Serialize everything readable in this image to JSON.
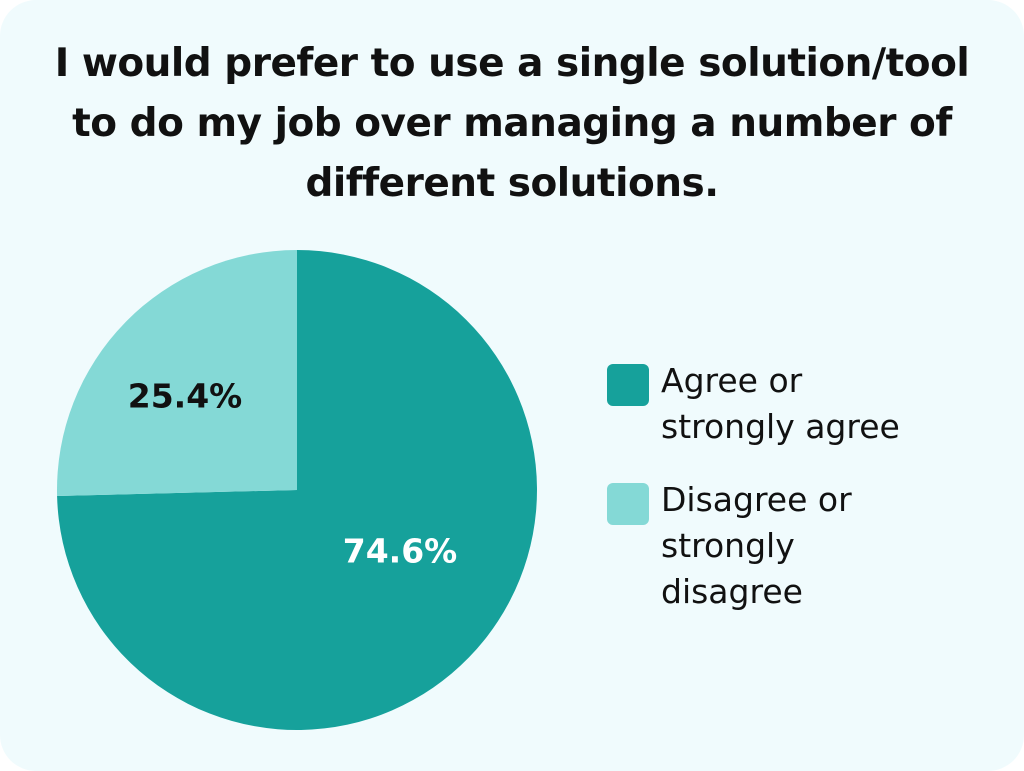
{
  "chart_data": {
    "type": "pie",
    "title": "I would prefer to use a single solution/tool to do my job over managing a number of different solutions.",
    "slices": [
      {
        "label": "Agree or strongly agree",
        "value": 74.6,
        "display": "74.6%",
        "color": "#16a19b",
        "label_color": "#ffffff"
      },
      {
        "label": "Disagree or strongly disagree",
        "value": 25.4,
        "display": "25.4%",
        "color": "#84d9d6",
        "label_color": "#111111"
      }
    ],
    "legend_position": "right"
  }
}
